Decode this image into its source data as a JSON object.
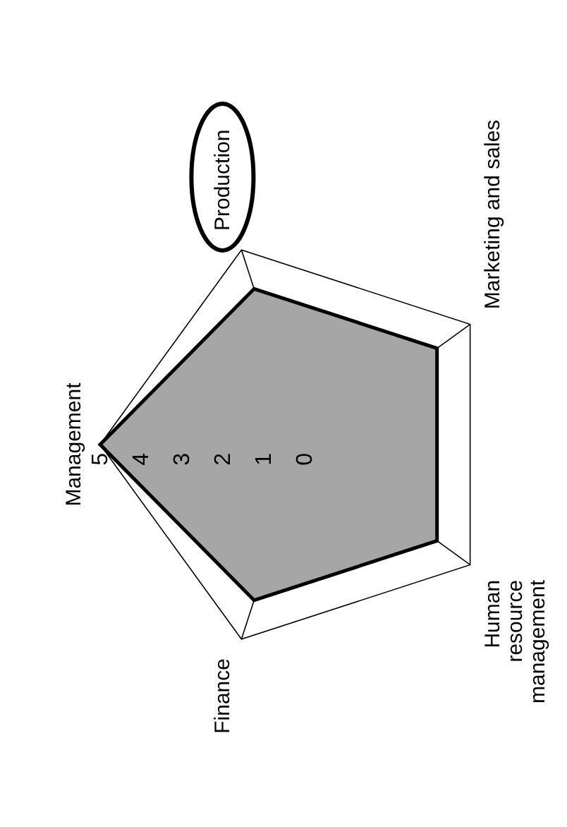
{
  "chart_data": {
    "type": "radar",
    "categories": [
      "Management",
      "Production",
      "Marketing and sales",
      "Human resource management",
      "Finance"
    ],
    "series": [
      {
        "color": "#a6a6a6",
        "values": [
          5,
          4,
          4,
          4,
          4
        ]
      }
    ],
    "ylim": [
      0,
      5
    ],
    "yticks": [
      0,
      1,
      2,
      3,
      4,
      5
    ],
    "grid": true
  }
}
